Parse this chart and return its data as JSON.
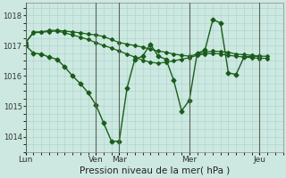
{
  "background_color": "#cce8e0",
  "grid_color": "#a8d4cc",
  "line_color": "#1a5c1a",
  "title": "Pression niveau de la mer( hPa )",
  "x_tick_labels": [
    "Lun",
    "Ven",
    "Mar",
    "Mer",
    "Jeu"
  ],
  "x_tick_positions": [
    0,
    72,
    96,
    168,
    240
  ],
  "xlim": [
    0,
    264
  ],
  "ylim": [
    1013.5,
    1018.4
  ],
  "yticks": [
    1014,
    1015,
    1016,
    1017,
    1018
  ],
  "line1_x": [
    0,
    8,
    16,
    24,
    32,
    40,
    48,
    56,
    64,
    72,
    80,
    88,
    96,
    104,
    112,
    120,
    128,
    136,
    144,
    152,
    160,
    168,
    176,
    184,
    192,
    200,
    208,
    216,
    224,
    232,
    240,
    248
  ],
  "line1_y": [
    1017.1,
    1017.45,
    1017.45,
    1017.5,
    1017.5,
    1017.48,
    1017.45,
    1017.42,
    1017.38,
    1017.35,
    1017.3,
    1017.2,
    1017.1,
    1017.05,
    1017.0,
    1016.95,
    1016.88,
    1016.82,
    1016.78,
    1016.72,
    1016.68,
    1016.65,
    1016.72,
    1016.78,
    1016.82,
    1016.8,
    1016.78,
    1016.72,
    1016.7,
    1016.68,
    1016.65,
    1016.65
  ],
  "line2_x": [
    0,
    8,
    16,
    24,
    32,
    40,
    48,
    56,
    64,
    72,
    80,
    88,
    96,
    104,
    112,
    120,
    128,
    136,
    144,
    152,
    160,
    168,
    176,
    184,
    192,
    200,
    208,
    216,
    224,
    232,
    240,
    248
  ],
  "line2_y": [
    1017.1,
    1017.42,
    1017.44,
    1017.46,
    1017.48,
    1017.42,
    1017.35,
    1017.28,
    1017.2,
    1017.1,
    1017.0,
    1016.92,
    1016.82,
    1016.72,
    1016.62,
    1016.52,
    1016.45,
    1016.42,
    1016.45,
    1016.5,
    1016.55,
    1016.6,
    1016.68,
    1016.72,
    1016.75,
    1016.72,
    1016.68,
    1016.65,
    1016.62,
    1016.6,
    1016.58,
    1016.58
  ],
  "line3_x": [
    0,
    8,
    16,
    24,
    32,
    40,
    48,
    56,
    64,
    72,
    80,
    88,
    96,
    104,
    112,
    120,
    128,
    136,
    144,
    152,
    160,
    168,
    176,
    184,
    192,
    200,
    208,
    216,
    224,
    232,
    240
  ],
  "line3_y": [
    1017.0,
    1016.75,
    1016.72,
    1016.62,
    1016.55,
    1016.3,
    1016.0,
    1015.75,
    1015.45,
    1015.05,
    1014.45,
    1013.85,
    1013.85,
    1015.6,
    1016.55,
    1016.65,
    1017.05,
    1016.65,
    1016.55,
    1015.85,
    1014.85,
    1015.2,
    1016.75,
    1016.85,
    1017.85,
    1017.75,
    1016.1,
    1016.05,
    1016.62,
    1016.65,
    1016.65
  ]
}
